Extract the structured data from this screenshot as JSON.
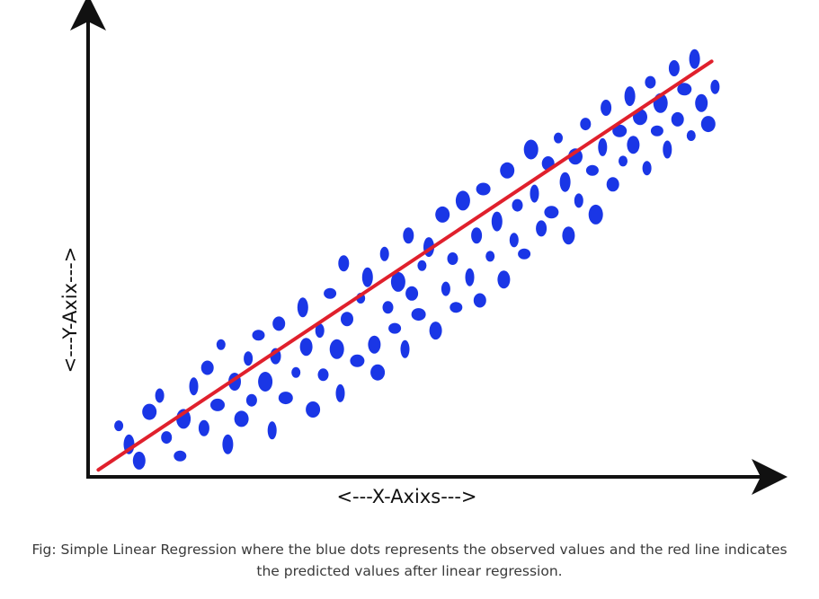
{
  "chart_data": {
    "type": "scatter",
    "xlabel": "<---X-Axixs--->",
    "ylabel": "<---Y-Axix--->",
    "xlim": [
      0,
      100
    ],
    "ylim": [
      0,
      100
    ],
    "grid": false,
    "legend": "none",
    "colors": {
      "points": "#1a36e6",
      "line": "#e0202c",
      "axes": "#111111"
    },
    "regression_line": {
      "x": [
        1.5,
        91.5
      ],
      "y": [
        1.5,
        89.5
      ]
    },
    "points": [
      {
        "x": 4.5,
        "y": 11.0
      },
      {
        "x": 6.0,
        "y": 7.0
      },
      {
        "x": 7.5,
        "y": 3.5
      },
      {
        "x": 9.0,
        "y": 14.0
      },
      {
        "x": 10.5,
        "y": 17.5
      },
      {
        "x": 11.5,
        "y": 8.5
      },
      {
        "x": 13.5,
        "y": 4.5
      },
      {
        "x": 14.0,
        "y": 12.5
      },
      {
        "x": 15.5,
        "y": 19.5
      },
      {
        "x": 17.0,
        "y": 10.5
      },
      {
        "x": 17.5,
        "y": 23.5
      },
      {
        "x": 19.0,
        "y": 15.5
      },
      {
        "x": 19.5,
        "y": 28.5
      },
      {
        "x": 20.5,
        "y": 7.0
      },
      {
        "x": 21.5,
        "y": 20.5
      },
      {
        "x": 22.5,
        "y": 12.5
      },
      {
        "x": 23.5,
        "y": 25.5
      },
      {
        "x": 24.0,
        "y": 16.5
      },
      {
        "x": 25.0,
        "y": 30.5
      },
      {
        "x": 26.0,
        "y": 20.5
      },
      {
        "x": 27.0,
        "y": 10.0
      },
      {
        "x": 27.5,
        "y": 26.0
      },
      {
        "x": 28.0,
        "y": 33.0
      },
      {
        "x": 29.0,
        "y": 17.0
      },
      {
        "x": 30.5,
        "y": 22.5
      },
      {
        "x": 31.5,
        "y": 36.5
      },
      {
        "x": 32.0,
        "y": 28.0
      },
      {
        "x": 33.0,
        "y": 14.5
      },
      {
        "x": 34.0,
        "y": 31.5
      },
      {
        "x": 34.5,
        "y": 22.0
      },
      {
        "x": 35.5,
        "y": 39.5
      },
      {
        "x": 36.5,
        "y": 27.5
      },
      {
        "x": 37.0,
        "y": 18.0
      },
      {
        "x": 37.5,
        "y": 46.0
      },
      {
        "x": 38.0,
        "y": 34.0
      },
      {
        "x": 39.5,
        "y": 25.0
      },
      {
        "x": 40.0,
        "y": 38.5
      },
      {
        "x": 41.0,
        "y": 43.0
      },
      {
        "x": 42.0,
        "y": 28.5
      },
      {
        "x": 42.5,
        "y": 22.5
      },
      {
        "x": 43.5,
        "y": 48.0
      },
      {
        "x": 44.0,
        "y": 36.5
      },
      {
        "x": 45.0,
        "y": 32.0
      },
      {
        "x": 45.5,
        "y": 42.0
      },
      {
        "x": 46.5,
        "y": 27.5
      },
      {
        "x": 47.0,
        "y": 52.0
      },
      {
        "x": 47.5,
        "y": 39.5
      },
      {
        "x": 48.5,
        "y": 35.0
      },
      {
        "x": 49.0,
        "y": 45.5
      },
      {
        "x": 50.0,
        "y": 49.5
      },
      {
        "x": 51.0,
        "y": 31.5
      },
      {
        "x": 52.0,
        "y": 56.5
      },
      {
        "x": 52.5,
        "y": 40.5
      },
      {
        "x": 53.5,
        "y": 47.0
      },
      {
        "x": 54.0,
        "y": 36.5
      },
      {
        "x": 55.0,
        "y": 59.5
      },
      {
        "x": 56.0,
        "y": 43.0
      },
      {
        "x": 57.0,
        "y": 52.0
      },
      {
        "x": 57.5,
        "y": 38.0
      },
      {
        "x": 58.0,
        "y": 62.0
      },
      {
        "x": 59.0,
        "y": 47.5
      },
      {
        "x": 60.0,
        "y": 55.0
      },
      {
        "x": 61.0,
        "y": 42.5
      },
      {
        "x": 61.5,
        "y": 66.0
      },
      {
        "x": 62.5,
        "y": 51.0
      },
      {
        "x": 63.0,
        "y": 58.5
      },
      {
        "x": 64.0,
        "y": 48.0
      },
      {
        "x": 65.0,
        "y": 70.5
      },
      {
        "x": 65.5,
        "y": 61.0
      },
      {
        "x": 66.5,
        "y": 53.5
      },
      {
        "x": 67.5,
        "y": 67.5
      },
      {
        "x": 68.0,
        "y": 57.0
      },
      {
        "x": 69.0,
        "y": 73.0
      },
      {
        "x": 70.0,
        "y": 63.5
      },
      {
        "x": 70.5,
        "y": 52.0
      },
      {
        "x": 71.5,
        "y": 69.0
      },
      {
        "x": 72.0,
        "y": 59.5
      },
      {
        "x": 73.0,
        "y": 76.0
      },
      {
        "x": 74.0,
        "y": 66.0
      },
      {
        "x": 74.5,
        "y": 56.5
      },
      {
        "x": 75.5,
        "y": 71.0
      },
      {
        "x": 76.0,
        "y": 79.5
      },
      {
        "x": 77.0,
        "y": 63.0
      },
      {
        "x": 78.0,
        "y": 74.5
      },
      {
        "x": 78.5,
        "y": 68.0
      },
      {
        "x": 79.5,
        "y": 82.0
      },
      {
        "x": 80.0,
        "y": 71.5
      },
      {
        "x": 81.0,
        "y": 77.5
      },
      {
        "x": 82.0,
        "y": 66.5
      },
      {
        "x": 82.5,
        "y": 85.0
      },
      {
        "x": 83.5,
        "y": 74.5
      },
      {
        "x": 84.0,
        "y": 80.5
      },
      {
        "x": 85.0,
        "y": 70.5
      },
      {
        "x": 86.0,
        "y": 88.0
      },
      {
        "x": 86.5,
        "y": 77.0
      },
      {
        "x": 87.5,
        "y": 83.5
      },
      {
        "x": 88.5,
        "y": 73.5
      },
      {
        "x": 89.0,
        "y": 90.0
      },
      {
        "x": 90.0,
        "y": 80.5
      },
      {
        "x": 91.0,
        "y": 76.0
      },
      {
        "x": 92.0,
        "y": 84.0
      }
    ]
  },
  "caption": {
    "line1": "Fig: Simple Linear Regression where the blue dots represents the observed values and the red line indicates",
    "line2": "the predicted values after linear regression."
  }
}
